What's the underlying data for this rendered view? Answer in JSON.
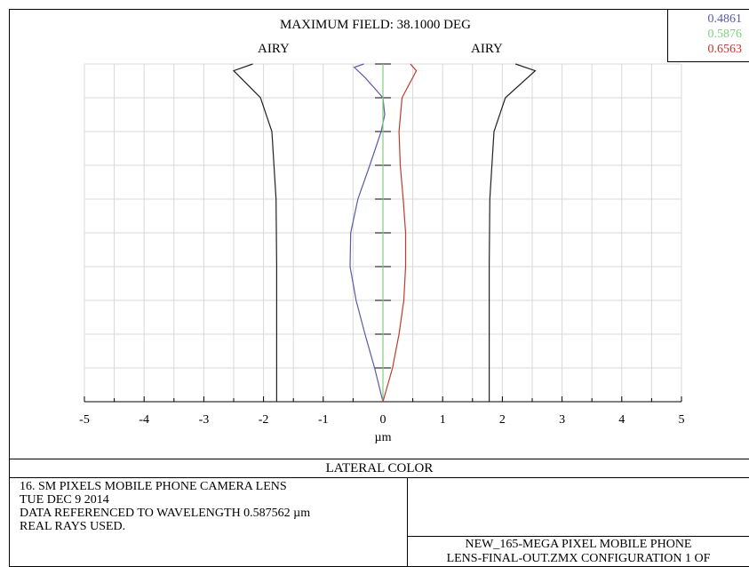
{
  "chart_data": {
    "type": "line",
    "title": "MAXIMUM FIELD: 38.1000 DEG",
    "subtitle": "LATERAL COLOR",
    "xlabel": "µm",
    "ylabel": "",
    "xlim": [
      -5,
      5
    ],
    "ylim": [
      0,
      1
    ],
    "x_ticks": [
      "-5",
      "-4",
      "-3",
      "-2",
      "-1",
      "0",
      "1",
      "2",
      "3",
      "4",
      "5"
    ],
    "grid": true,
    "annotations": [
      "AIRY",
      "AIRY"
    ],
    "legend": {
      "placement": "top-right",
      "entries": [
        {
          "label": "0.4861",
          "color": "#5a5aa8"
        },
        {
          "label": "0.5876",
          "color": "#7fcf7f"
        },
        {
          "label": "0.6563",
          "color": "#c0392b"
        }
      ]
    },
    "series": [
      {
        "color": "#5a5aa8",
        "points": [
          [
            0,
            0
          ],
          [
            -0.14,
            0.1
          ],
          [
            -0.3,
            0.2
          ],
          [
            -0.45,
            0.3
          ],
          [
            -0.55,
            0.4
          ],
          [
            -0.54,
            0.5
          ],
          [
            -0.42,
            0.6
          ],
          [
            -0.22,
            0.7
          ],
          [
            -0.03,
            0.8
          ],
          [
            0.03,
            0.85
          ],
          [
            0,
            0.9
          ],
          [
            -0.3,
            0.96
          ],
          [
            -0.48,
            0.99
          ],
          [
            -0.32,
            1.0
          ]
        ]
      },
      {
        "color": "#7fcf7f",
        "points": [
          [
            0,
            0
          ],
          [
            0,
            1
          ]
        ]
      },
      {
        "color": "#c0392b",
        "points": [
          [
            0,
            0
          ],
          [
            0.16,
            0.1
          ],
          [
            0.27,
            0.2
          ],
          [
            0.35,
            0.3
          ],
          [
            0.38,
            0.4
          ],
          [
            0.38,
            0.5
          ],
          [
            0.34,
            0.6
          ],
          [
            0.29,
            0.7
          ],
          [
            0.27,
            0.8
          ],
          [
            0.32,
            0.9
          ],
          [
            0.56,
            0.98
          ],
          [
            0.46,
            1.0
          ]
        ]
      },
      {
        "color": "#222222",
        "points": [
          [
            -1.78,
            0
          ],
          [
            -1.78,
            0.4
          ],
          [
            -1.79,
            0.6
          ],
          [
            -1.86,
            0.8
          ],
          [
            -2.05,
            0.9
          ],
          [
            -2.5,
            0.98
          ],
          [
            -2.18,
            1.0
          ]
        ]
      },
      {
        "color": "#222222",
        "points": [
          [
            1.78,
            0
          ],
          [
            1.78,
            0.4
          ],
          [
            1.79,
            0.6
          ],
          [
            1.86,
            0.8
          ],
          [
            2.05,
            0.9
          ],
          [
            2.55,
            0.98
          ],
          [
            2.22,
            1.0
          ]
        ]
      }
    ]
  },
  "legend_labels": [
    "0.4861",
    "0.5876",
    "0.6563"
  ],
  "footer": {
    "title": "LATERAL COLOR",
    "info_lines": [
      "16. SM PIXELS MOBILE PHONE CAMERA LENS",
      "TUE DEC 9 2014",
      "DATA REFERENCED TO WAVELENGTH 0.587562 µm",
      "REAL RAYS USED."
    ],
    "file_lines": [
      "NEW_165-MEGA PIXEL MOBILE PHONE",
      "LENS-FINAL-OUT.ZMX CONFIGURATION 1 OF"
    ]
  }
}
